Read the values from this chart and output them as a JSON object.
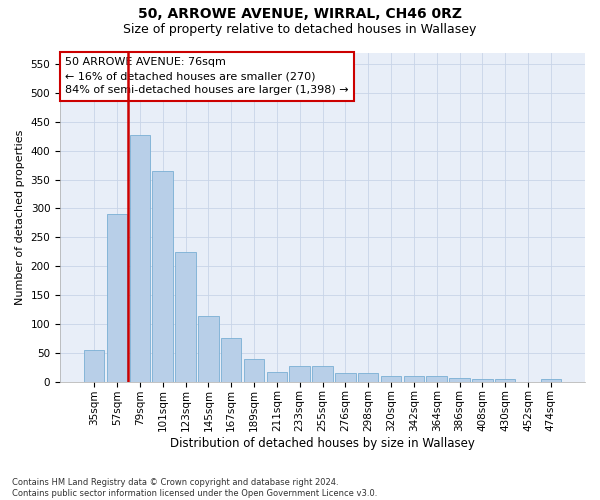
{
  "title1": "50, ARROWE AVENUE, WIRRAL, CH46 0RZ",
  "title2": "Size of property relative to detached houses in Wallasey",
  "xlabel": "Distribution of detached houses by size in Wallasey",
  "ylabel": "Number of detached properties",
  "categories": [
    "35sqm",
    "57sqm",
    "79sqm",
    "101sqm",
    "123sqm",
    "145sqm",
    "167sqm",
    "189sqm",
    "211sqm",
    "233sqm",
    "255sqm",
    "276sqm",
    "298sqm",
    "320sqm",
    "342sqm",
    "364sqm",
    "386sqm",
    "408sqm",
    "430sqm",
    "452sqm",
    "474sqm"
  ],
  "values": [
    55,
    290,
    428,
    365,
    224,
    113,
    76,
    39,
    17,
    27,
    27,
    15,
    15,
    10,
    10,
    10,
    6,
    4,
    4,
    0,
    4
  ],
  "bar_color": "#b8cfe8",
  "bar_edge_color": "#7aafd4",
  "annotation_text": "50 ARROWE AVENUE: 76sqm\n← 16% of detached houses are smaller (270)\n84% of semi-detached houses are larger (1,398) →",
  "annotation_box_color": "white",
  "annotation_box_edge_color": "#cc0000",
  "vline_color": "#cc0000",
  "ylim": [
    0,
    570
  ],
  "yticks": [
    0,
    50,
    100,
    150,
    200,
    250,
    300,
    350,
    400,
    450,
    500,
    550
  ],
  "footnote": "Contains HM Land Registry data © Crown copyright and database right 2024.\nContains public sector information licensed under the Open Government Licence v3.0.",
  "background_color": "#e8eef8",
  "grid_color": "#c8d4e8",
  "title1_fontsize": 10,
  "title2_fontsize": 9,
  "xlabel_fontsize": 8.5,
  "ylabel_fontsize": 8,
  "annotation_fontsize": 8,
  "tick_fontsize": 7.5,
  "footnote_fontsize": 6
}
